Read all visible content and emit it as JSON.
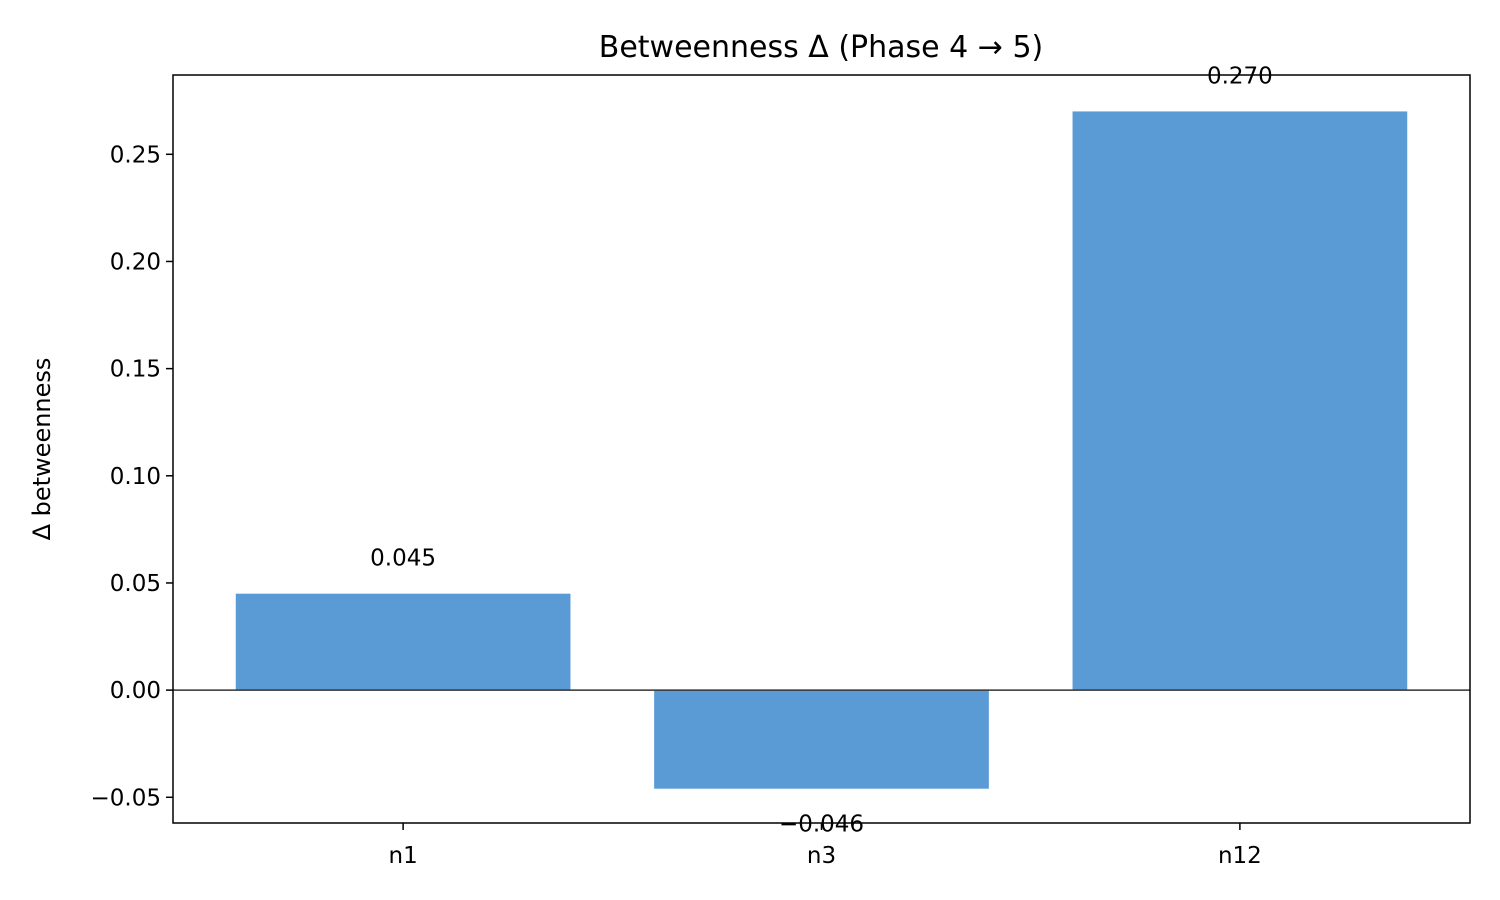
{
  "chart_data": {
    "type": "bar",
    "title": "Betweenness Δ (Phase 4 → 5)",
    "xlabel": "",
    "ylabel": "Δ betweenness",
    "categories": [
      "n1",
      "n3",
      "n12"
    ],
    "values": [
      0.045,
      -0.046,
      0.27
    ],
    "value_labels": [
      "0.045",
      "−0.046",
      "0.270"
    ],
    "ylim": [
      -0.062,
      0.287
    ],
    "yticks": [
      -0.05,
      0.0,
      0.05,
      0.1,
      0.15,
      0.2,
      0.25
    ],
    "ytick_labels": [
      "−0.05",
      "0.00",
      "0.05",
      "0.10",
      "0.15",
      "0.20",
      "0.25"
    ],
    "zero_line": true,
    "grid": false,
    "bar_color": "#5b9bd5",
    "axis_color": "#000000",
    "zero_line_color": "#333333"
  }
}
